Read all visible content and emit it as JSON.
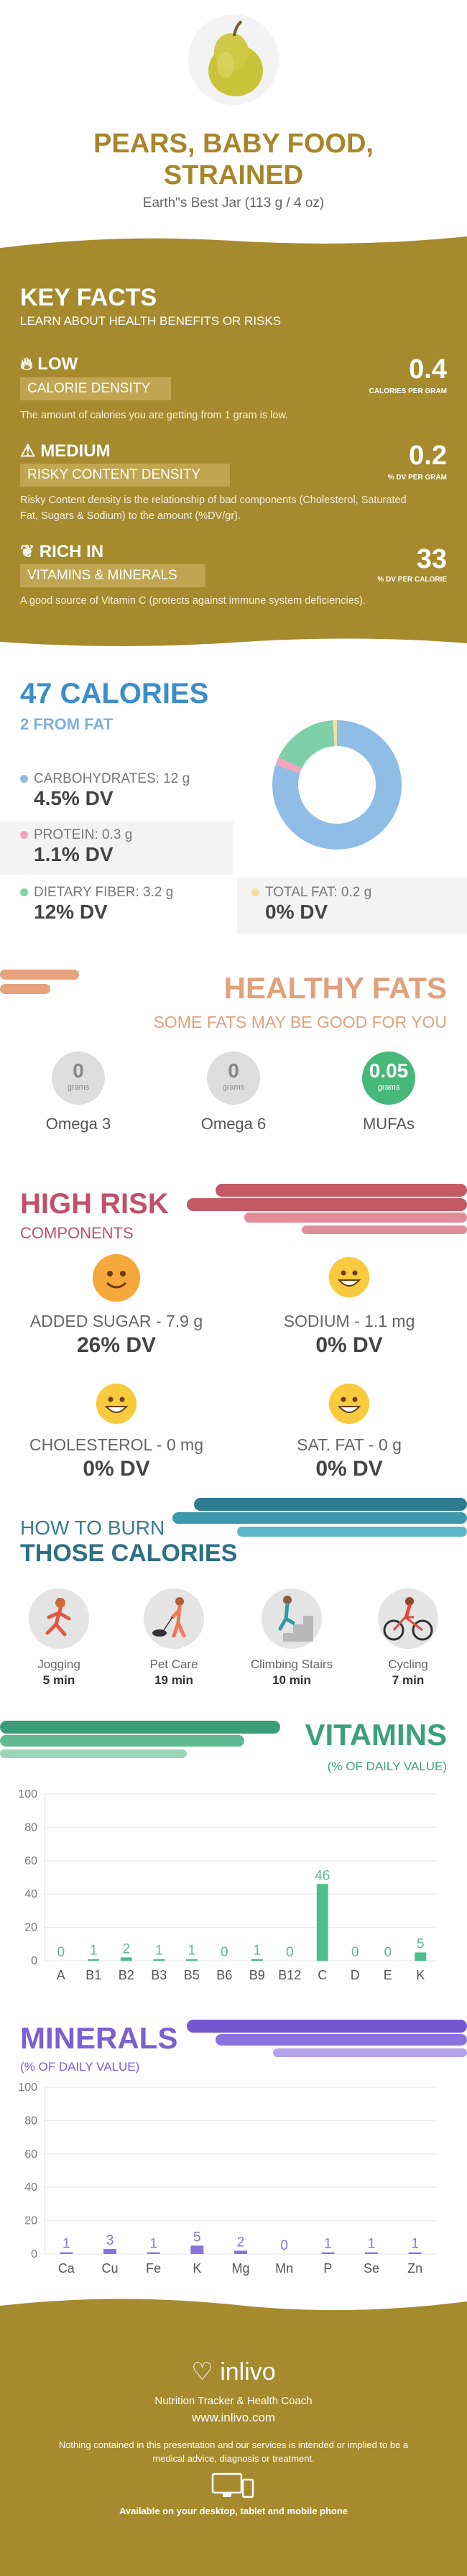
{
  "header": {
    "title_line1": "PEARS, BABY FOOD,",
    "title_line2": "STRAINED",
    "subtitle": "Earth\"s Best Jar (113 g / 4 oz)"
  },
  "key_facts": {
    "title": "KEY FACTS",
    "subtitle": "LEARN ABOUT HEALTH BENEFITS OR RISKS",
    "items": [
      {
        "level": "LOW",
        "name": "CALORIE DENSITY",
        "value": "0.4",
        "unit": "CALORIES PER GRAM",
        "desc": "The amount of calories you are getting from 1 gram is low.",
        "icon": "flame-icon"
      },
      {
        "level": "MEDIUM",
        "name": "RISKY CONTENT DENSITY",
        "value": "0.2",
        "unit": "% DV PER GRAM",
        "desc": "Risky Content density is the relationship of bad components (Cholesterol, Saturated Fat, Sugars & Sodium) to the amount (%DV/gr).",
        "icon": "warning-icon"
      },
      {
        "level": "RICH  IN",
        "name": "VITAMINS & MINERALS",
        "value": "33",
        "unit": "% DV PER CALORIE",
        "desc": "A good source of Vitamin C (protects against immune system deficiencies).",
        "icon": "leaf-icon"
      }
    ]
  },
  "calories": {
    "title": "47 CALORIES",
    "from_fat": "2 FROM FAT",
    "carbs_label": "CARBOHYDRATES: 12 g",
    "carbs_dv": "4.5% DV",
    "protein_label": "PROTEIN: 0.3 g",
    "protein_dv": "1.1% DV",
    "fiber_label": "DIETARY FIBER: 3.2 g",
    "fiber_dv": "12% DV",
    "fat_label": "TOTAL FAT: 0.2 g",
    "fat_dv": "0% DV",
    "colors": {
      "carbs": "#8fbde6",
      "protein": "#f2a5bd",
      "fiber": "#7fcfa8",
      "fat": "#f3e0a0"
    },
    "donut": [
      {
        "name": "carbs",
        "value": 80
      },
      {
        "name": "protein",
        "value": 2
      },
      {
        "name": "fiber",
        "value": 17
      },
      {
        "name": "fat",
        "value": 1
      }
    ]
  },
  "fats": {
    "title": "HEALTHY FATS",
    "subtitle": "SOME FATS MAY BE GOOD FOR YOU",
    "unit": "grams",
    "items": [
      {
        "name": "Omega 3",
        "value": "0"
      },
      {
        "name": "Omega 6",
        "value": "0"
      },
      {
        "name": "MUFAs",
        "value": "0.05"
      }
    ],
    "highlight_color": "#46b879"
  },
  "risk": {
    "title": "HIGH RISK",
    "subtitle": "COMPONENTS",
    "items": [
      {
        "label": "ADDED SUGAR - 7.9 g",
        "dv": "26% DV"
      },
      {
        "label": "SODIUM - 1.1 mg",
        "dv": "0% DV"
      },
      {
        "label": "CHOLESTEROL - 0 mg",
        "dv": "0% DV"
      },
      {
        "label": "SAT. FAT - 0 g",
        "dv": "0% DV"
      }
    ]
  },
  "burn": {
    "title1": "HOW TO BURN",
    "title2": "THOSE CALORIES",
    "activities": [
      {
        "name": "Jogging",
        "time": "5 min",
        "icon": "jogging-icon"
      },
      {
        "name": "Pet Care",
        "time": "19 min",
        "icon": "pet-care-icon"
      },
      {
        "name": "Climbing Stairs",
        "time": "10 min",
        "icon": "stairs-icon"
      },
      {
        "name": "Cycling",
        "time": "7 min",
        "icon": "cycling-icon"
      }
    ]
  },
  "chart_data": [
    {
      "type": "bar",
      "title": "VITAMINS",
      "subtitle": "(% OF DAILY VALUE)",
      "categories": [
        "A",
        "B1",
        "B2",
        "B3",
        "B5",
        "B6",
        "B9",
        "B12",
        "C",
        "D",
        "E",
        "K"
      ],
      "values": [
        0,
        1,
        2,
        1,
        1,
        0,
        1,
        0,
        46,
        0,
        0,
        5
      ],
      "ylim": [
        0,
        100
      ],
      "yticks": [
        0,
        20,
        40,
        60,
        80,
        100
      ],
      "color": "#4cbf8a",
      "label_color": "#5fb98f"
    },
    {
      "type": "bar",
      "title": "MINERALS",
      "subtitle": "(% OF DAILY VALUE)",
      "categories": [
        "Ca",
        "Cu",
        "Fe",
        "K",
        "Mg",
        "Mn",
        "P",
        "Se",
        "Zn"
      ],
      "values": [
        1,
        3,
        1,
        5,
        2,
        0,
        1,
        1,
        1
      ],
      "ylim": [
        0,
        100
      ],
      "yticks": [
        0,
        20,
        40,
        60,
        80,
        100
      ],
      "color": "#8a73e0",
      "label_color": "#8a73e0"
    }
  ],
  "footer": {
    "logo": "inlivo",
    "line1": "Nutrition Tracker & Health Coach",
    "line2": "www.inlivo.com",
    "disclaimer": "Nothing contained in this presentation and our services is intended or implied to be a medical advice, diagnosis or treatment.",
    "available": "Available on your desktop, tablet and mobile phone"
  }
}
